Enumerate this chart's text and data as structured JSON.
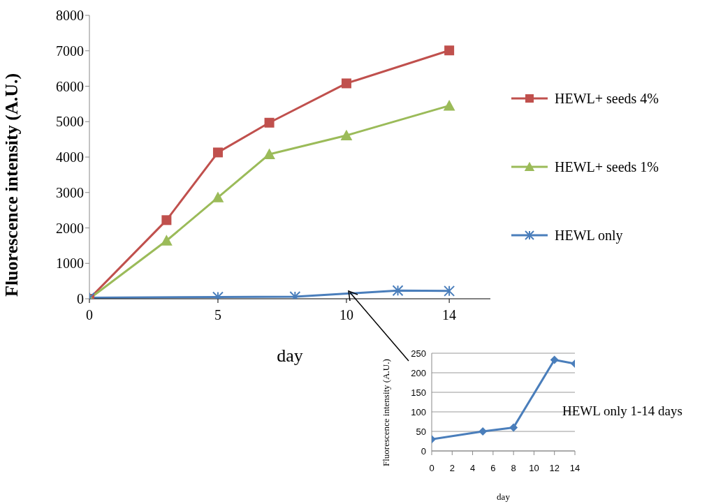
{
  "chart_data": [
    {
      "type": "line",
      "xlabel": "day",
      "ylabel": "Fluorescence   intensity (A.U.)",
      "xlim": [
        0,
        15.6
      ],
      "xticks": [
        0,
        5,
        10,
        14
      ],
      "ylim": [
        0,
        8000
      ],
      "yticks": [
        0,
        1000,
        2000,
        3000,
        4000,
        5000,
        6000,
        7000,
        8000
      ],
      "grid": false,
      "legend": "right",
      "series": [
        {
          "name": "HEWL+ seeds 4%",
          "color": "#c0504d",
          "marker": "square",
          "x": [
            0,
            3,
            5,
            7,
            10,
            14
          ],
          "values": [
            0,
            2220,
            4130,
            4970,
            6080,
            7010
          ]
        },
        {
          "name": "HEWL+ seeds 1%",
          "color": "#9bbb59",
          "marker": "triangle",
          "x": [
            0,
            3,
            5,
            7,
            10,
            14
          ],
          "values": [
            0,
            1640,
            2860,
            4080,
            4610,
            5450
          ]
        },
        {
          "name": "HEWL only",
          "color": "#4a7ebb",
          "marker": "cross",
          "x": [
            0,
            5,
            8,
            12,
            14
          ],
          "values": [
            30,
            50,
            60,
            230,
            220
          ]
        }
      ]
    },
    {
      "type": "line",
      "xlabel": "day",
      "ylabel": "Fluorescence intensity (A.U.)",
      "xlim": [
        0,
        14
      ],
      "xticks": [
        0,
        2,
        4,
        6,
        8,
        10,
        12,
        14
      ],
      "ylim": [
        0,
        250
      ],
      "yticks": [
        0,
        50,
        100,
        150,
        200,
        250
      ],
      "grid": "y",
      "legend": false,
      "annotations": [
        "HEWL only 1-14 days"
      ],
      "series": [
        {
          "color": "#4a7ebb",
          "marker": "diamond",
          "x": [
            0,
            5,
            8,
            12,
            14
          ],
          "values": [
            30,
            50,
            60,
            233,
            223
          ]
        }
      ]
    }
  ]
}
